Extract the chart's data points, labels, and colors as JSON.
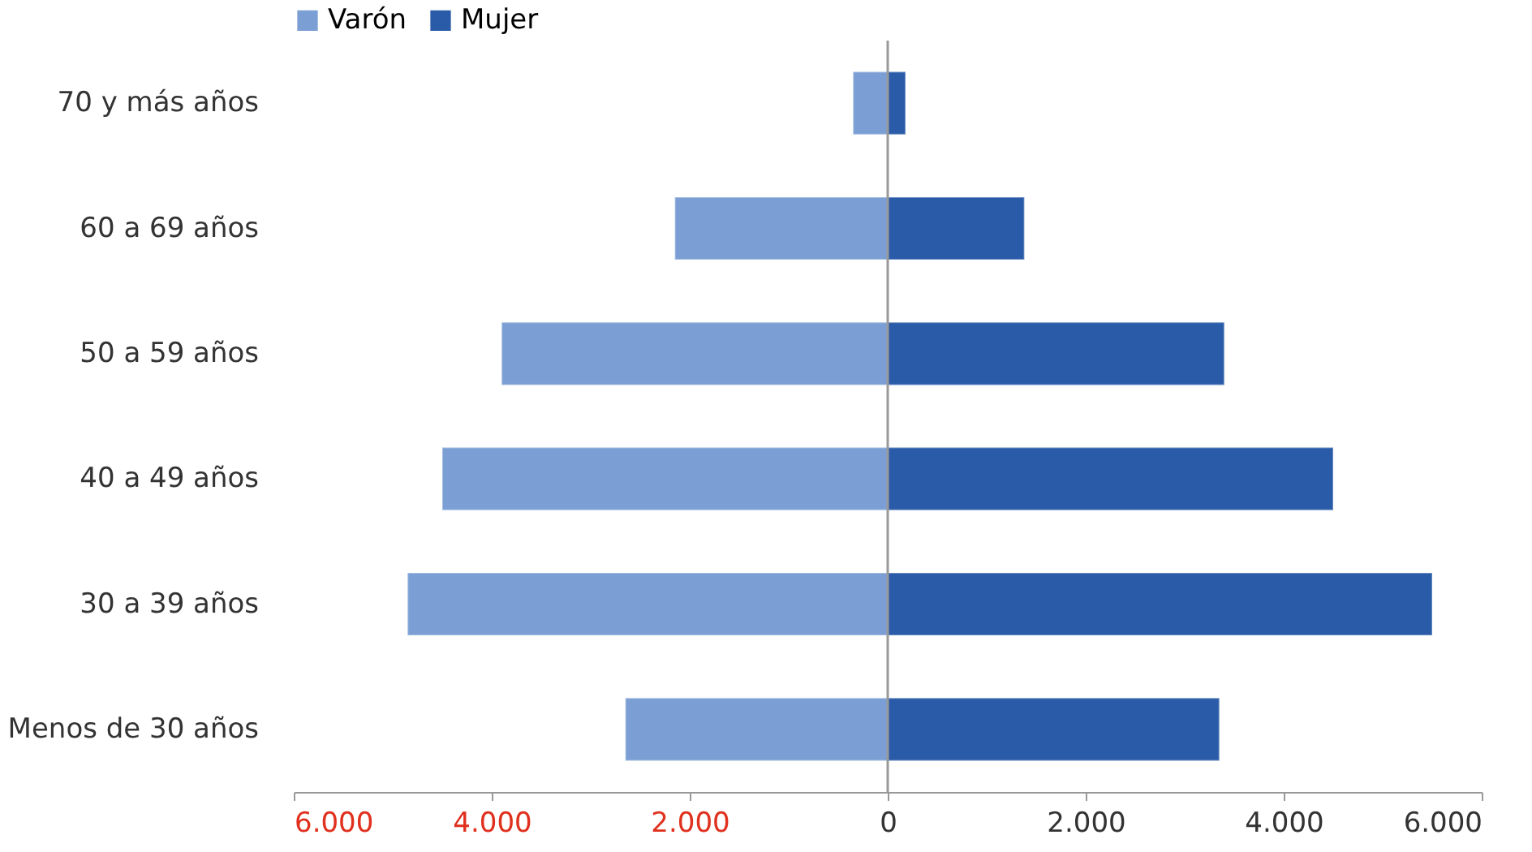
{
  "chart_data": {
    "type": "bar",
    "orientation": "horizontal",
    "categories": [
      "70 y más años",
      "60 a 69 años",
      "50 a 59 años",
      "40 a 49 años",
      "30 a 39 años",
      "Menos de 30 años"
    ],
    "series": [
      {
        "name": "Varón",
        "color": "#7b9fd4",
        "values": [
          -350,
          -2150,
          -3900,
          -4500,
          -4850,
          -2650
        ]
      },
      {
        "name": "Mujer",
        "color": "#2a5ba8",
        "values": [
          180,
          1380,
          3400,
          4500,
          5500,
          3350
        ]
      }
    ],
    "stacked": true,
    "xlim": [
      -6000,
      6000
    ],
    "xticks": [
      {
        "value": -6000,
        "label": "6.000"
      },
      {
        "value": -4000,
        "label": "4.000"
      },
      {
        "value": -2000,
        "label": "2.000"
      },
      0,
      {
        "value": 2000,
        "label": "2.000"
      },
      {
        "value": 4000,
        "label": "4.000"
      },
      {
        "value": 6000,
        "label": "6.000"
      }
    ],
    "ref_lines": [
      {
        "axis": "x",
        "value": 0,
        "color": "#999999"
      }
    ],
    "grid": false,
    "legend": "top"
  }
}
